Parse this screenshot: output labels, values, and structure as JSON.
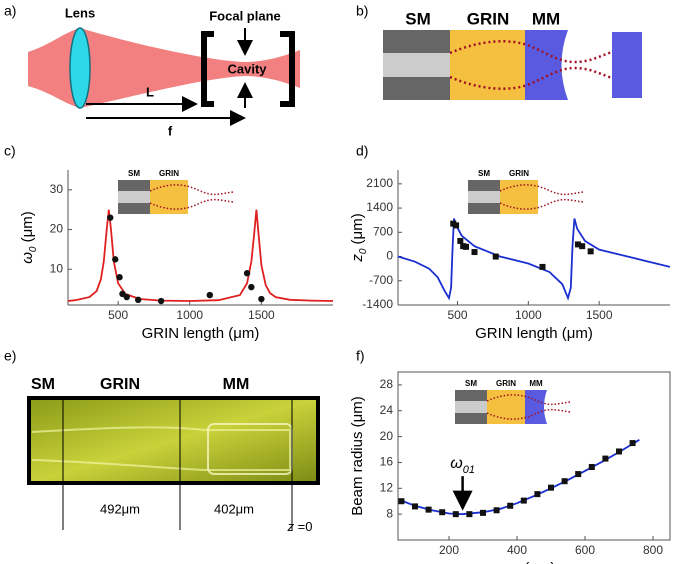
{
  "a": {
    "label": "a)",
    "lens": "Lens",
    "focal_plane": "Focal plane",
    "cavity": "Cavity",
    "L": "L",
    "f": "f"
  },
  "b": {
    "label": "b)",
    "sm": "SM",
    "grin": "GRIN",
    "mm": "MM"
  },
  "e": {
    "label": "e)",
    "sm": "SM",
    "grin": "GRIN",
    "mm": "MM",
    "grin_length": "492μm",
    "mm_length": "402μm",
    "z_symbol": "z",
    "z_value": " =0"
  },
  "chart_data": [
    {
      "type": "line",
      "label": "c)",
      "xlabel": "GRIN length (μm)",
      "ylabel": {
        "main": "ω",
        "sub": "0",
        "unit": " (μm)"
      },
      "xlim": [
        150,
        2000
      ],
      "ylim": [
        1,
        35
      ],
      "xticks": [
        500,
        1000,
        1500
      ],
      "yticks": [
        10,
        20,
        30
      ],
      "box": false,
      "inset_labels": [
        "SM",
        "GRIN"
      ],
      "series": [
        {
          "color": "#e02020",
          "style": "line",
          "x": [
            150,
            200,
            300,
            350,
            380,
            400,
            420,
            435,
            450,
            470,
            500,
            550,
            650,
            800,
            1000,
            1200,
            1350,
            1400,
            1430,
            1450,
            1465,
            1480,
            1500,
            1530,
            1560,
            1600,
            1700,
            1850,
            2000
          ],
          "values": [
            2.0,
            2.2,
            3.0,
            4.5,
            7.5,
            12,
            20,
            25,
            20,
            12,
            6.5,
            3.8,
            2.5,
            2.1,
            2.0,
            2.2,
            3.5,
            6.5,
            12,
            19,
            25,
            19,
            11,
            6,
            4,
            3,
            2.3,
            2.1,
            2.0
          ]
        },
        {
          "color": "#111111",
          "style": "circle",
          "x": [
            445,
            480,
            510,
            530,
            560,
            640,
            800,
            1140,
            1400,
            1430,
            1500
          ],
          "values": [
            23,
            12.5,
            8,
            3.8,
            3,
            2.3,
            2,
            3.5,
            9,
            5.5,
            2.5
          ]
        }
      ]
    },
    {
      "type": "line",
      "label": "d)",
      "xlabel": "GRIN length (μm)",
      "ylabel": {
        "main": "z",
        "sub": "0",
        "unit": " (μm)"
      },
      "xlim": [
        80,
        2000
      ],
      "ylim": [
        -1400,
        2500
      ],
      "xticks": [
        500,
        1000,
        1500
      ],
      "yticks": [
        -1400,
        -700,
        0,
        700,
        1400,
        2100
      ],
      "box": false,
      "inset_labels": [
        "SM",
        "GRIN"
      ],
      "series": [
        {
          "color": "#1a2fd0",
          "style": "line",
          "x": [
            80,
            200,
            300,
            360,
            410,
            440,
            455,
            465,
            475,
            490,
            530,
            620,
            800,
            1000,
            1150,
            1240,
            1280,
            1300,
            1312,
            1325,
            1345,
            1400,
            1500,
            1700,
            1850,
            2000
          ],
          "values": [
            0,
            -150,
            -350,
            -600,
            -1000,
            -1200,
            -900,
            200,
            1100,
            900,
            600,
            300,
            0,
            -200,
            -450,
            -800,
            -1200,
            -900,
            300,
            1100,
            800,
            450,
            200,
            0,
            -150,
            -300
          ]
        },
        {
          "color": "#111111",
          "style": "square",
          "x": [
            470,
            490,
            520,
            540,
            560,
            620,
            770,
            1100,
            1350,
            1380,
            1440
          ],
          "values": [
            950,
            900,
            450,
            300,
            280,
            130,
            0,
            -300,
            350,
            300,
            150
          ]
        }
      ]
    },
    {
      "type": "line",
      "label": "f)",
      "xlabel": {
        "main": "z",
        "sub": "",
        "unit": " (μm)"
      },
      "ylabel": "Beam radius (μm)",
      "xlim": [
        50,
        850
      ],
      "ylim": [
        4,
        30
      ],
      "xticks": [
        200,
        400,
        600,
        800
      ],
      "yticks": [
        8,
        12,
        16,
        20,
        24,
        28
      ],
      "box": true,
      "inset_labels": [
        "SM",
        "GRIN",
        "MM"
      ],
      "annotation": {
        "main": "ω",
        "sub": "01",
        "x": 240,
        "y": 8
      },
      "series": [
        {
          "color": "#1a2fd0",
          "style": "line",
          "x": [
            60,
            100,
            150,
            200,
            240,
            300,
            350,
            400,
            450,
            500,
            550,
            600,
            650,
            700,
            760
          ],
          "values": [
            10.1,
            9.3,
            8.6,
            8.1,
            8.0,
            8.3,
            8.8,
            9.7,
            10.8,
            12.0,
            13.3,
            14.7,
            16.1,
            17.6,
            19.5
          ]
        },
        {
          "color": "#111111",
          "style": "square",
          "x": [
            60,
            100,
            140,
            180,
            220,
            260,
            300,
            340,
            380,
            420,
            460,
            500,
            540,
            580,
            620,
            660,
            700,
            740
          ],
          "values": [
            10.0,
            9.2,
            8.7,
            8.3,
            8.0,
            8.0,
            8.2,
            8.6,
            9.3,
            10.1,
            11.1,
            12.1,
            13.1,
            14.2,
            15.3,
            16.6,
            17.7,
            19.0
          ]
        }
      ]
    }
  ]
}
